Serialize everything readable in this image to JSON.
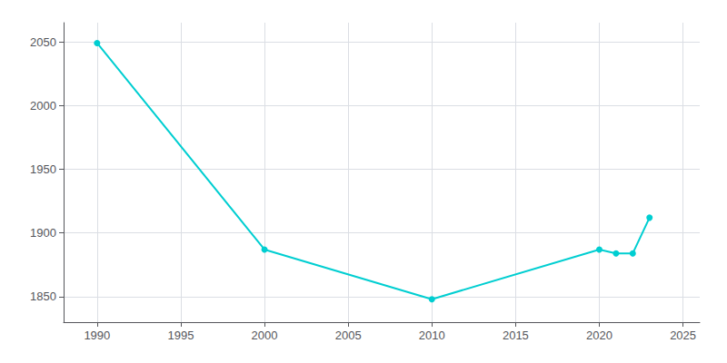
{
  "chart_data": {
    "type": "line",
    "x": [
      1990,
      2000,
      2010,
      2020,
      2021,
      2022,
      2023
    ],
    "values": [
      2049,
      1887,
      1848,
      1887,
      1884,
      1884,
      1912
    ],
    "color": "#00CED1",
    "marker": "circle",
    "xlim": [
      1988,
      2026
    ],
    "ylim": [
      1830,
      2065
    ],
    "xticks": [
      1990,
      1995,
      2000,
      2005,
      2010,
      2015,
      2020,
      2025
    ],
    "yticks": [
      1850,
      1900,
      1950,
      2000,
      2050
    ],
    "grid": true
  }
}
